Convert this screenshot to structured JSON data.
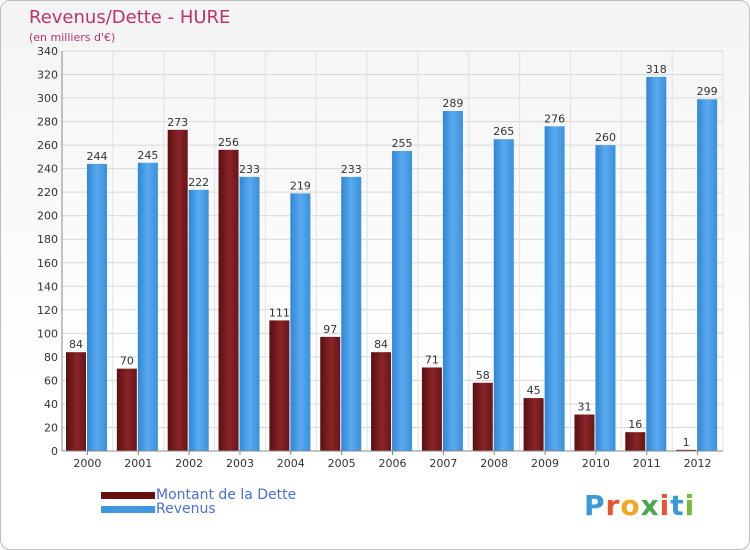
{
  "title": "Revenus/Dette - HURE",
  "subtitle": "(en milliers d'€)",
  "legend": [
    {
      "label": "Montant de la Dette",
      "color": "#7a1a1a"
    },
    {
      "label": "Revenus",
      "color": "#3f97df"
    }
  ],
  "logo": {
    "text": "Proxiti",
    "letters": [
      "P",
      "r",
      "o",
      "x",
      "i",
      "t",
      "i"
    ],
    "colors": [
      "#3a9ad9",
      "#e8542f",
      "#f2a623",
      "#4aa84a",
      "#e8542f",
      "#3a9ad9",
      "#7ab83b"
    ]
  },
  "chart_data": {
    "type": "bar",
    "categories": [
      "2000",
      "2001",
      "2002",
      "2003",
      "2004",
      "2005",
      "2006",
      "2007",
      "2008",
      "2009",
      "2010",
      "2011",
      "2012"
    ],
    "series": [
      {
        "name": "Montant de la Dette",
        "values": [
          84,
          70,
          273,
          256,
          111,
          97,
          84,
          71,
          58,
          45,
          31,
          16,
          1
        ],
        "color": "#7a1a1a"
      },
      {
        "name": "Revenus",
        "values": [
          244,
          245,
          222,
          233,
          219,
          233,
          255,
          289,
          265,
          276,
          260,
          318,
          299
        ],
        "color": "#3f97df"
      }
    ],
    "yticks": [
      0,
      20,
      40,
      60,
      80,
      100,
      120,
      140,
      160,
      180,
      200,
      220,
      240,
      260,
      280,
      300,
      320,
      340
    ],
    "ylim": [
      0,
      340
    ],
    "grid": true,
    "title": "Revenus/Dette - HURE",
    "ylabel": "(en milliers d'€)",
    "xlabel": ""
  }
}
